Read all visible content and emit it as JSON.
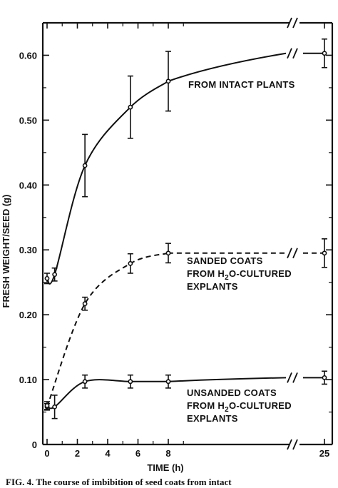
{
  "chart_data": {
    "type": "line",
    "xlabel": "TIME (h)",
    "ylabel": "FRESH WEIGHT/SEED (g)",
    "xlim": [
      0,
      25
    ],
    "ylim": [
      0,
      0.65
    ],
    "x_axis_break": true,
    "x_ticks": [
      "0",
      "2",
      "4",
      "6",
      "8",
      "25"
    ],
    "y_ticks": [
      "0",
      "0.10",
      "0.20",
      "0.30",
      "0.40",
      "0.50",
      "0.60"
    ],
    "grid": false,
    "series": [
      {
        "name": "FROM INTACT PLANTS",
        "line_style": "solid",
        "points": [
          {
            "x": 0,
            "y": 0.256,
            "err": 0.008
          },
          {
            "x": 0.5,
            "y": 0.262,
            "err": 0.01
          },
          {
            "x": 2.5,
            "y": 0.43,
            "err": 0.048
          },
          {
            "x": 5.5,
            "y": 0.52,
            "err": 0.048
          },
          {
            "x": 8,
            "y": 0.56,
            "err": 0.046
          },
          {
            "x": 25,
            "y": 0.603,
            "err": 0.022
          }
        ]
      },
      {
        "name": "SANDED COATS FROM H2O-CULTURED EXPLANTS",
        "line_style": "dashed",
        "points": [
          {
            "x": 0,
            "y": 0.058,
            "err": 0.005
          },
          {
            "x": 2.5,
            "y": 0.217,
            "err": 0.01
          },
          {
            "x": 5.5,
            "y": 0.279,
            "err": 0.015
          },
          {
            "x": 8,
            "y": 0.295,
            "err": 0.015
          },
          {
            "x": 25,
            "y": 0.295,
            "err": 0.022
          }
        ]
      },
      {
        "name": "UNSANDED COATS FROM H2O-CULTURED EXPLANTS",
        "line_style": "solid",
        "points": [
          {
            "x": 0,
            "y": 0.06,
            "err": 0.006
          },
          {
            "x": 0.5,
            "y": 0.058,
            "err": 0.018
          },
          {
            "x": 2.5,
            "y": 0.097,
            "err": 0.01
          },
          {
            "x": 5.5,
            "y": 0.097,
            "err": 0.01
          },
          {
            "x": 8,
            "y": 0.097,
            "err": 0.01
          },
          {
            "x": 25,
            "y": 0.103,
            "err": 0.01
          }
        ]
      }
    ],
    "annotations": [
      {
        "lines": [
          "FROM INTACT PLANTS"
        ]
      },
      {
        "lines": [
          "SANDED COATS",
          "FROM H2O-CULTURED",
          "EXPLANTS"
        ]
      },
      {
        "lines": [
          "UNSANDED COATS",
          "FROM H2O-CULTURED",
          "EXPLANTS"
        ]
      }
    ],
    "caption_fragment": "FIG. 4. The course of imbibition of seed coats from intact"
  }
}
